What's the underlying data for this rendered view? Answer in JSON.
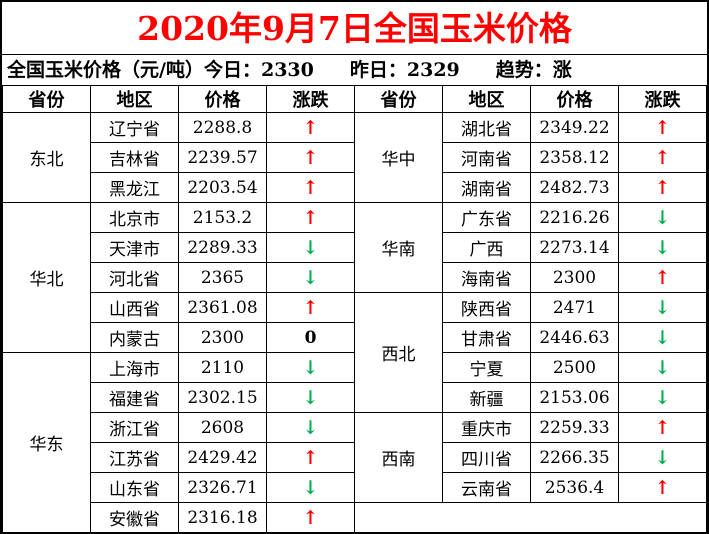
{
  "chart_data": {
    "type": "table",
    "title": "2020年9月7日全国玉米价格",
    "summary": {
      "prefix": "全国玉米价格（元/吨）",
      "today_label": "今日：",
      "today_value": "2330",
      "yesterday_label": "昨日：",
      "yesterday_value": "2329",
      "trend_label": "趋势：",
      "trend_value": "涨"
    },
    "columns": [
      "省份",
      "地区",
      "价格",
      "涨跌"
    ],
    "left_groups": [
      {
        "province": "东北",
        "rows": [
          {
            "region": "辽宁省",
            "price": "2288.8",
            "trend": "up"
          },
          {
            "region": "吉林省",
            "price": "2239.57",
            "trend": "up"
          },
          {
            "region": "黑龙江",
            "price": "2203.54",
            "trend": "up"
          }
        ]
      },
      {
        "province": "华北",
        "rows": [
          {
            "region": "北京市",
            "price": "2153.2",
            "trend": "up"
          },
          {
            "region": "天津市",
            "price": "2289.33",
            "trend": "down"
          },
          {
            "region": "河北省",
            "price": "2365",
            "trend": "down"
          },
          {
            "region": "山西省",
            "price": "2361.08",
            "trend": "up"
          },
          {
            "region": "内蒙古",
            "price": "2300",
            "trend": "zero"
          }
        ]
      },
      {
        "province": "华东",
        "rows": [
          {
            "region": "上海市",
            "price": "2110",
            "trend": "down"
          },
          {
            "region": "福建省",
            "price": "2302.15",
            "trend": "down"
          },
          {
            "region": "浙江省",
            "price": "2608",
            "trend": "down"
          },
          {
            "region": "江苏省",
            "price": "2429.42",
            "trend": "up"
          },
          {
            "region": "山东省",
            "price": "2326.71",
            "trend": "down"
          },
          {
            "region": "安徽省",
            "price": "2316.18",
            "trend": "up"
          }
        ]
      }
    ],
    "right_groups": [
      {
        "province": "华中",
        "rows": [
          {
            "region": "湖北省",
            "price": "2349.22",
            "trend": "up"
          },
          {
            "region": "河南省",
            "price": "2358.12",
            "trend": "up"
          },
          {
            "region": "湖南省",
            "price": "2482.73",
            "trend": "up"
          }
        ]
      },
      {
        "province": "华南",
        "rows": [
          {
            "region": "广东省",
            "price": "2216.26",
            "trend": "down"
          },
          {
            "region": "广西",
            "price": "2273.14",
            "trend": "down"
          },
          {
            "region": "海南省",
            "price": "2300",
            "trend": "up"
          }
        ]
      },
      {
        "province": "西北",
        "rows": [
          {
            "region": "陕西省",
            "price": "2471",
            "trend": "down"
          },
          {
            "region": "甘肃省",
            "price": "2446.63",
            "trend": "down"
          },
          {
            "region": "宁夏",
            "price": "2500",
            "trend": "down"
          },
          {
            "region": "新疆",
            "price": "2153.06",
            "trend": "down"
          }
        ]
      },
      {
        "province": "西南",
        "rows": [
          {
            "region": "重庆市",
            "price": "2259.33",
            "trend": "up"
          },
          {
            "region": "四川省",
            "price": "2266.35",
            "trend": "down"
          },
          {
            "region": "云南省",
            "price": "2536.4",
            "trend": "up"
          }
        ]
      }
    ],
    "trend_glyphs": {
      "up": "↑",
      "down": "↓",
      "zero": "0"
    },
    "colors": {
      "title": "#FF0000",
      "up": "#FF0000",
      "down": "#00B050",
      "neutral": "#000000",
      "border": "#000000",
      "background": "#FFFFFF"
    }
  }
}
